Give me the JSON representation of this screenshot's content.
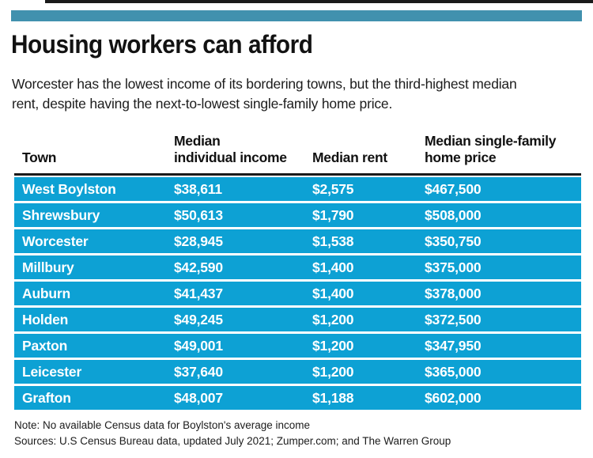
{
  "page": {
    "title": "Housing workers can afford",
    "subtitle_lines": [
      "Worcester has the lowest income of its bordering towns, but the third-highest median",
      "rent, despite having the next-to-lowest single-family home price."
    ]
  },
  "table": {
    "header_lines": [
      [
        "Town"
      ],
      [
        "Median",
        "individual income"
      ],
      [
        "Median rent"
      ],
      [
        "Median single-family",
        "home price"
      ]
    ],
    "rows": [
      [
        "West Boylston",
        "$38,611",
        "$2,575",
        "$467,500"
      ],
      [
        "Shrewsbury",
        "$50,613",
        "$1,790",
        "$508,000"
      ],
      [
        "Worcester",
        "$28,945",
        "$1,538",
        "$350,750"
      ],
      [
        "Millbury",
        "$42,590",
        "$1,400",
        "$375,000"
      ],
      [
        "Auburn",
        "$41,437",
        "$1,400",
        "$378,000"
      ],
      [
        "Holden",
        "$49,245",
        "$1,200",
        "$372,500"
      ],
      [
        "Paxton",
        "$49,001",
        "$1,200",
        "$347,950"
      ],
      [
        "Leicester",
        "$37,640",
        "$1,200",
        "$365,000"
      ],
      [
        "Grafton",
        "$48,007",
        "$1,188",
        "$602,000"
      ]
    ]
  },
  "footer": {
    "note": "Note: No available Census data for Boylston's average income",
    "sources": "Sources: U.S Census Bureau data, updated July 2021; Zumper.com; and The Warren Group"
  },
  "colors": {
    "row_blue": "#0da1d4",
    "accent_teal": "#4191ae",
    "rule_black": "#1a1a1a"
  },
  "chart_data": {
    "type": "table",
    "title": "Housing workers can afford",
    "subtitle": "Worcester has the lowest income of its bordering towns, but the third-highest median rent, despite having the next-to-lowest single-family home price.",
    "columns": [
      "Town",
      "Median individual income",
      "Median rent",
      "Median single-family home price"
    ],
    "rows": [
      [
        "West Boylston",
        38611,
        2575,
        467500
      ],
      [
        "Shrewsbury",
        50613,
        1790,
        508000
      ],
      [
        "Worcester",
        28945,
        1538,
        350750
      ],
      [
        "Millbury",
        42590,
        1400,
        375000
      ],
      [
        "Auburn",
        41437,
        1400,
        378000
      ],
      [
        "Holden",
        49245,
        1200,
        372500
      ],
      [
        "Paxton",
        49001,
        1200,
        347950
      ],
      [
        "Leicester",
        37640,
        1200,
        365000
      ],
      [
        "Grafton",
        48007,
        1188,
        602000
      ]
    ],
    "note": "Note: No available Census data for Boylston's average income",
    "sources": "Sources: U.S Census Bureau data, updated July 2021; Zumper.com; and The Warren Group",
    "layout": {
      "highlight_row_color": "#0da1d4",
      "grid": false,
      "legend": "none"
    }
  }
}
